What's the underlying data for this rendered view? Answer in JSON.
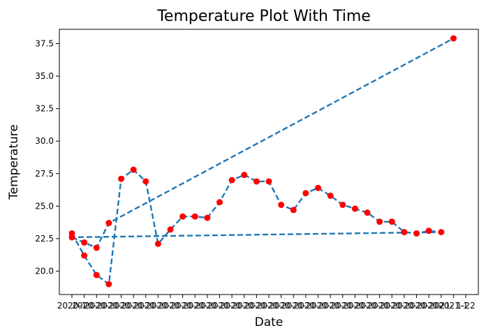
{
  "chart_data": {
    "type": "line",
    "title": "Temperature Plot With Time",
    "xlabel": "Date",
    "ylabel": "Temperature",
    "ylim": [
      18.2,
      38.6
    ],
    "yticks": [
      "20.0",
      "22.5",
      "25.0",
      "27.5",
      "30.0",
      "32.5",
      "35.0",
      "37.5"
    ],
    "ytick_values": [
      20.0,
      22.5,
      25.0,
      27.5,
      30.0,
      32.5,
      35.0,
      37.5
    ],
    "x_tick_labels": [
      "2020-1",
      "2020-",
      "2020-",
      "2020-",
      "2020-",
      "2020-",
      "2020-",
      "2020-",
      "2020-",
      "2020-",
      "2020-",
      "2020-",
      "2020-",
      "2020-",
      "2020-",
      "2020-",
      "2020-",
      "2020-",
      "2020-",
      "2020-",
      "2020-",
      "2020-",
      "2020-",
      "2020-",
      "2020-",
      "2020-",
      "2020-",
      "2020-",
      "2020-",
      "2020-",
      "2021-",
      "2021-1",
      "1-22"
    ],
    "x_positions": [
      0,
      1,
      2,
      3,
      4,
      5,
      6,
      7,
      8,
      9,
      10,
      11,
      12,
      13,
      14,
      15,
      16,
      17,
      18,
      19,
      20,
      21,
      22,
      23,
      24,
      25,
      26,
      27,
      28,
      29,
      30,
      31,
      32
    ],
    "series": [
      {
        "line_style": "dashed",
        "line_color": "#1f77b4",
        "marker_color": "#ff0000",
        "x_index": [
          0,
          1,
          2,
          3,
          4,
          5,
          6,
          7,
          8,
          9,
          10,
          11,
          12,
          13,
          14,
          15,
          16,
          17,
          18,
          19,
          20,
          21,
          22,
          23,
          24,
          25,
          26,
          27,
          28,
          29,
          30,
          31,
          32,
          31,
          30,
          29,
          28,
          27,
          26,
          25,
          24,
          23,
          22,
          21,
          20,
          19,
          18,
          17,
          16,
          15,
          14,
          13,
          12,
          11,
          10,
          9,
          8,
          7,
          6,
          5,
          4,
          3,
          2,
          1,
          0,
          3,
          32
        ],
        "y": []
      }
    ],
    "points": [
      {
        "x": 0,
        "y": 22.6
      },
      {
        "x": 1,
        "y": 22.2
      },
      {
        "x": 2,
        "y": 21.8
      },
      {
        "x": 3,
        "y": 23.7
      },
      {
        "x": 4,
        "y": 27.1
      },
      {
        "x": 5,
        "y": 27.8
      },
      {
        "x": 6,
        "y": 26.9
      },
      {
        "x": 7,
        "y": 22.1
      },
      {
        "x": 8,
        "y": 23.2
      },
      {
        "x": 9,
        "y": 24.2
      },
      {
        "x": 10,
        "y": 24.2
      },
      {
        "x": 11,
        "y": 24.1
      },
      {
        "x": 12,
        "y": 25.3
      },
      {
        "x": 13,
        "y": 27.0
      },
      {
        "x": 14,
        "y": 27.4
      },
      {
        "x": 15,
        "y": 26.9
      },
      {
        "x": 16,
        "y": 26.9
      },
      {
        "x": 17,
        "y": 25.1
      },
      {
        "x": 18,
        "y": 24.7
      },
      {
        "x": 19,
        "y": 26.0
      },
      {
        "x": 20,
        "y": 26.4
      },
      {
        "x": 21,
        "y": 25.8
      },
      {
        "x": 22,
        "y": 25.1
      },
      {
        "x": 23,
        "y": 24.8
      },
      {
        "x": 24,
        "y": 24.5
      },
      {
        "x": 25,
        "y": 23.8
      },
      {
        "x": 26,
        "y": 23.8
      },
      {
        "x": 27,
        "y": 23.0
      },
      {
        "x": 28,
        "y": 22.9
      },
      {
        "x": 29,
        "y": 23.1
      },
      {
        "x": 30,
        "y": 23.0
      },
      {
        "x": 0,
        "y": 22.9
      },
      {
        "x": 1,
        "y": 21.2
      },
      {
        "x": 2,
        "y": 19.7
      },
      {
        "x": 3,
        "y": 19.0
      },
      {
        "x": 31,
        "y": 37.9
      }
    ],
    "line_path": [
      {
        "x": 0,
        "y": 22.6
      },
      {
        "x": 1,
        "y": 22.2
      },
      {
        "x": 2,
        "y": 21.8
      },
      {
        "x": 3,
        "y": 23.7
      },
      {
        "x": 31,
        "y": 37.9
      }
    ],
    "line_path_2": [
      {
        "x": 0,
        "y": 22.9
      },
      {
        "x": 1,
        "y": 21.2
      },
      {
        "x": 2,
        "y": 19.7
      },
      {
        "x": 3,
        "y": 19.0
      },
      {
        "x": 4,
        "y": 27.1
      },
      {
        "x": 5,
        "y": 27.8
      },
      {
        "x": 6,
        "y": 26.9
      },
      {
        "x": 7,
        "y": 22.1
      },
      {
        "x": 8,
        "y": 23.2
      },
      {
        "x": 9,
        "y": 24.2
      },
      {
        "x": 10,
        "y": 24.2
      },
      {
        "x": 11,
        "y": 24.1
      },
      {
        "x": 12,
        "y": 25.3
      },
      {
        "x": 13,
        "y": 27.0
      },
      {
        "x": 14,
        "y": 27.4
      },
      {
        "x": 15,
        "y": 26.9
      },
      {
        "x": 16,
        "y": 26.9
      },
      {
        "x": 17,
        "y": 25.1
      },
      {
        "x": 18,
        "y": 24.7
      },
      {
        "x": 19,
        "y": 26.0
      },
      {
        "x": 20,
        "y": 26.4
      },
      {
        "x": 21,
        "y": 25.8
      },
      {
        "x": 22,
        "y": 25.1
      },
      {
        "x": 23,
        "y": 24.8
      },
      {
        "x": 24,
        "y": 24.5
      },
      {
        "x": 25,
        "y": 23.8
      },
      {
        "x": 26,
        "y": 23.8
      },
      {
        "x": 27,
        "y": 23.0
      },
      {
        "x": 28,
        "y": 22.9
      },
      {
        "x": 29,
        "y": 23.1
      },
      {
        "x": 30,
        "y": 23.0
      },
      {
        "x": 0,
        "y": 22.6
      }
    ],
    "grid": false,
    "legend": "none"
  }
}
